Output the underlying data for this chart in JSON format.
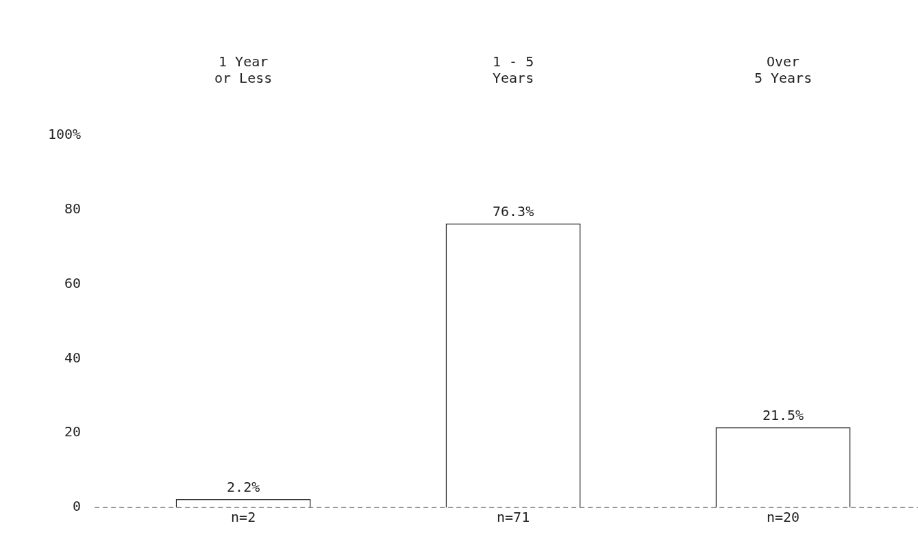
{
  "chart_data": {
    "type": "bar",
    "categories": [
      "1 Year\nor Less",
      "1 - 5\nYears",
      "Over\n5 Years"
    ],
    "values": [
      2.2,
      76.3,
      21.5
    ],
    "value_labels": [
      "2.2%",
      "76.3%",
      "21.5%"
    ],
    "color": "#ffffff",
    "ylim": [
      0,
      100
    ],
    "yticks": [
      0,
      20,
      40,
      60,
      80,
      {
        "value": 100,
        "label": "100%"
      }
    ],
    "grid": false,
    "legend": false,
    "annotations": [
      {
        "text": "n=2",
        "x": "1 Year\nor Less",
        "y": 0
      },
      {
        "text": "n=71",
        "x": "1 - 5\nYears",
        "y": 0
      },
      {
        "text": "n=20",
        "x": "Over\n5 Years",
        "y": 0
      }
    ]
  }
}
